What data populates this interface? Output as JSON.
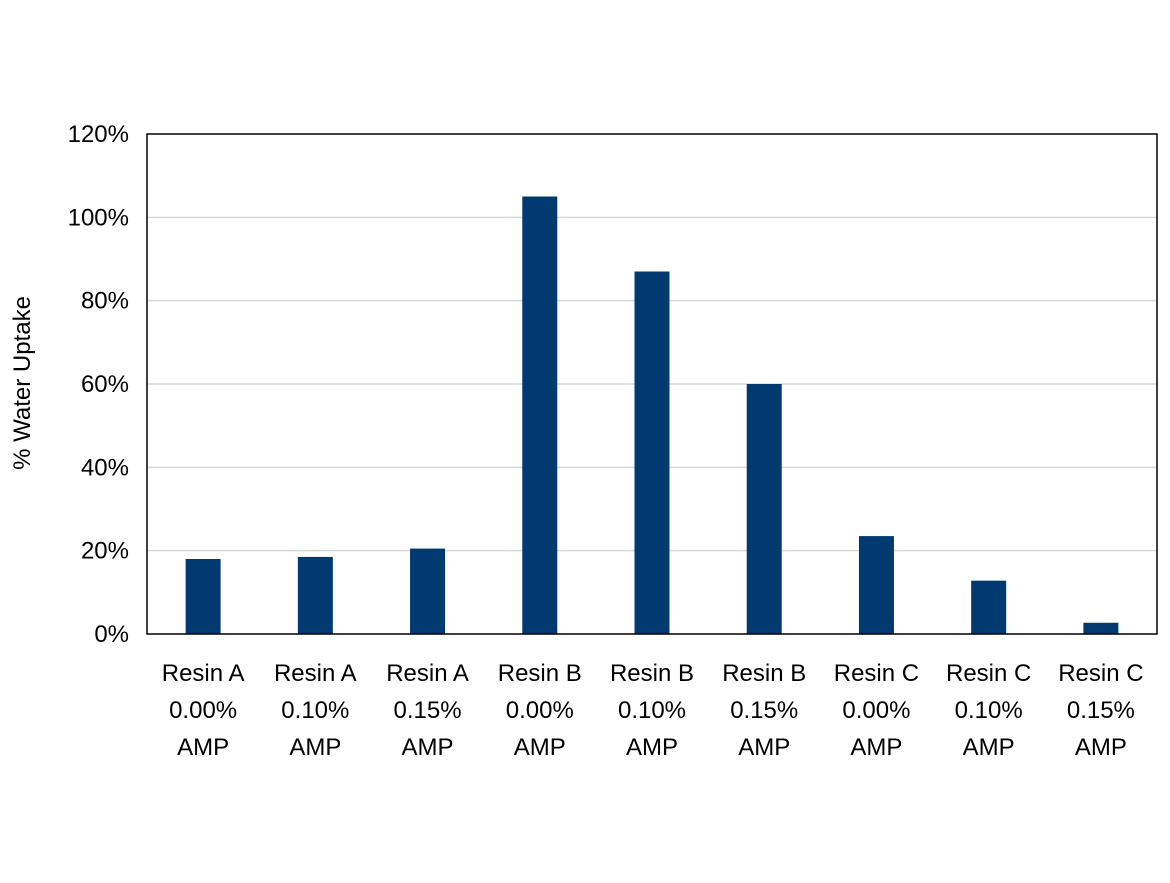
{
  "chart_data": {
    "type": "bar",
    "title": "",
    "xlabel": "",
    "ylabel": "% Water Uptake",
    "ylim": [
      0,
      120
    ],
    "yticks": [
      0,
      20,
      40,
      60,
      80,
      100,
      120
    ],
    "ytick_labels": [
      "0%",
      "20%",
      "40%",
      "60%",
      "80%",
      "100%",
      "120%"
    ],
    "grid": "horizontal",
    "legend": "none",
    "bar_color": "#003A70",
    "grid_color": "#D9D9D9",
    "categories": [
      [
        "Resin A",
        "0.00%",
        "AMP"
      ],
      [
        "Resin A",
        "0.10%",
        "AMP"
      ],
      [
        "Resin A",
        "0.15%",
        "AMP"
      ],
      [
        "Resin B",
        "0.00%",
        "AMP"
      ],
      [
        "Resin B",
        "0.10%",
        "AMP"
      ],
      [
        "Resin B",
        "0.15%",
        "AMP"
      ],
      [
        "Resin C",
        "0.00%",
        "AMP"
      ],
      [
        "Resin C",
        "0.10%",
        "AMP"
      ],
      [
        "Resin C",
        "0.15%",
        "AMP"
      ]
    ],
    "values": [
      18,
      18.5,
      20.5,
      105,
      87,
      60,
      23.5,
      12.8,
      2.7
    ]
  }
}
